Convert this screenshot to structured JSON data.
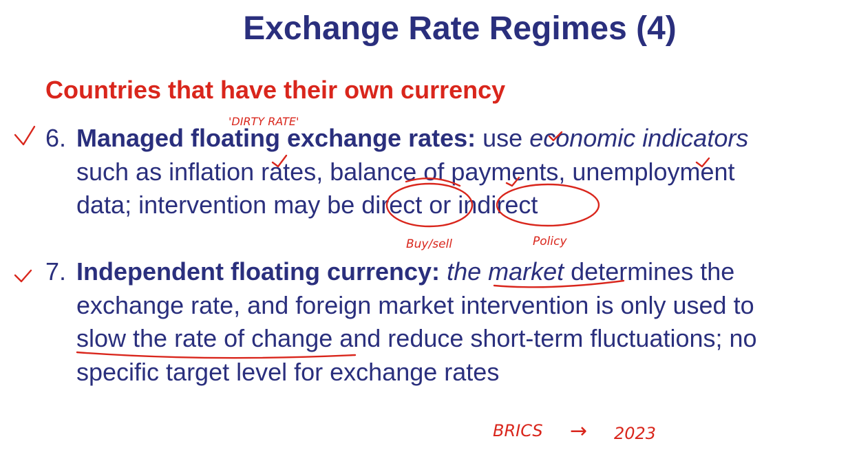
{
  "slide": {
    "title": "Exchange Rate Regimes (4)",
    "subtitle": "Countries that have their own currency",
    "items": [
      {
        "number": "6.",
        "heading": "Managed floating exchange rates:",
        "line1_text": " use ",
        "line1_italic": "economic indicators",
        "line2": "such as inflation rates, balance of payments, unemployment",
        "line3": "data; intervention may be direct or indirect"
      },
      {
        "number": "7.",
        "heading": "Independent floating currency:",
        "line1_space": " ",
        "line1_italic": "the market",
        "line1_text": " determines the",
        "line2": "exchange rate, and foreign market intervention is only used to",
        "line3": "slow the rate of change and reduce short-term fluctuations; no",
        "line4": "specific target level for exchange rates"
      }
    ]
  },
  "annotations": {
    "dirty_rate": "'DIRTY RATE'",
    "buy_sell": "Buy/sell",
    "policy": "Policy",
    "brics": "BRICS",
    "arrow": "→",
    "year": "2023",
    "ink_color": "#d9261c"
  }
}
